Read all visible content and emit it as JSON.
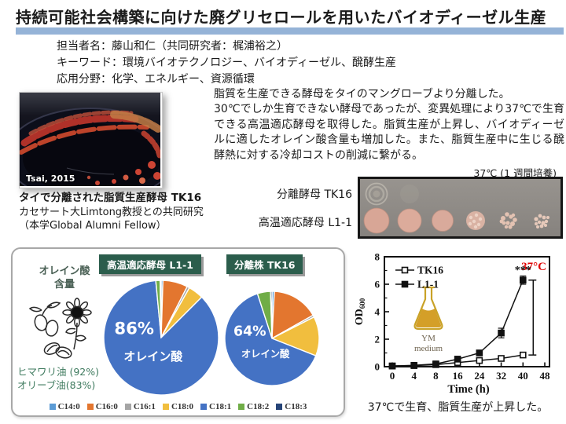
{
  "slide": {
    "title": "持続可能社会構築に向けた廃グリセロールを用いたバイオディーゼル生産",
    "accent_bar_color": "#95B3D7"
  },
  "meta": {
    "line1": "担当者名：藤山和仁（共同研究者：梶浦裕之）",
    "line2": "キーワード：環境バイオテクノロジー、バイオディーゼル、醗酵生産",
    "line3": "応用分野：化学、エネルギー、資源循環"
  },
  "summary": {
    "p1": "脂質を生産できる酵母をタイのマングローブより分離した。",
    "p2": "30℃でしか生育できない酵母であったが、変異処理により37℃で生育できる高温適応酵母を取得した。脂質生産が上昇し、バイオディーゼルに適したオレイン酸含量も増加した。また、脂質生産中に生じる醗酵熱に対する冷却コストの削減に繋がる。"
  },
  "photo": {
    "credit": "Tsai, 2015",
    "caption_bold": "タイで分離された脂質生産酵母 TK16",
    "caption_line2": "カセサート大Limtong教授との共同研究",
    "caption_line3": "（本学Global Alumni Fellow）"
  },
  "spot_assay": {
    "condition_label": "37℃ (1 週間培養)",
    "row1_label": "分離酵母 TK16",
    "row2_label": "高温適応酵母  L1-1"
  },
  "oleic_panel": {
    "label_line1": "オレイン酸",
    "label_line2": "含量",
    "ref1": "ヒマワリ油 (92%)",
    "ref2": "オリーブ油(83%)",
    "header_color": "#2b5d4c"
  },
  "growth_caption": "37℃で生育、脂質生産が上昇した。",
  "chart_data": [
    {
      "type": "pie",
      "name": "fatty_acid_composition_L1-1",
      "title": "高温適応酵母 L1-1",
      "categories": [
        "C14:0",
        "C16:0",
        "C16:1",
        "C18:0",
        "C18:1",
        "C18:2",
        "C18:3"
      ],
      "values": [
        0.5,
        7,
        0.7,
        4.3,
        86,
        1.2,
        0.3
      ],
      "colors": [
        "#5B9BD5",
        "#E3762F",
        "#A5A5A5",
        "#F1BE3E",
        "#4472C4",
        "#70AD47",
        "#264478"
      ],
      "label_pct": "86%",
      "label_name": "オレイン酸",
      "legend_position": "bottom"
    },
    {
      "type": "pie",
      "name": "fatty_acid_composition_TK16",
      "title": "分離株 TK16",
      "categories": [
        "C14:0",
        "C16:0",
        "C16:1",
        "C18:0",
        "C18:1",
        "C18:2",
        "C18:3"
      ],
      "values": [
        0.8,
        16,
        0.7,
        13.5,
        64,
        4.5,
        0.5
      ],
      "colors": [
        "#5B9BD5",
        "#E3762F",
        "#A5A5A5",
        "#F1BE3E",
        "#4472C4",
        "#70AD47",
        "#264478"
      ],
      "label_pct": "64%",
      "label_name": "オレイン酸",
      "legend_position": "bottom"
    },
    {
      "type": "line",
      "name": "growth_curve_37C",
      "xlabel": "Time (h)",
      "ylabel_main": "OD",
      "ylabel_sub": "600",
      "x_ticks": [
        0,
        4,
        8,
        16,
        24,
        32,
        40,
        48
      ],
      "y_ticks": [
        0,
        2,
        4,
        6,
        8
      ],
      "ylim": [
        0,
        8
      ],
      "temp_label": "37°C",
      "temp_label_color": "#E00000",
      "flask_label_1": "YM",
      "flask_label_2": "medium",
      "significance": "***",
      "grid": false,
      "legend_position": "top-left-inside",
      "series": [
        {
          "name": "TK16",
          "marker": "open-square",
          "x": [
            0,
            4,
            8,
            16,
            24,
            32,
            40
          ],
          "y": [
            0.05,
            0.08,
            0.15,
            0.3,
            0.45,
            0.6,
            0.85
          ],
          "yerr": [
            0,
            0,
            0,
            0,
            0,
            0,
            0.1
          ]
        },
        {
          "name": "L1-1",
          "marker": "filled-square",
          "x": [
            0,
            4,
            8,
            16,
            24,
            32,
            40
          ],
          "y": [
            0.05,
            0.1,
            0.2,
            0.55,
            1.0,
            2.45,
            6.3
          ],
          "yerr": [
            0,
            0,
            0,
            0.1,
            0.12,
            0.35,
            0.3
          ]
        }
      ]
    }
  ]
}
